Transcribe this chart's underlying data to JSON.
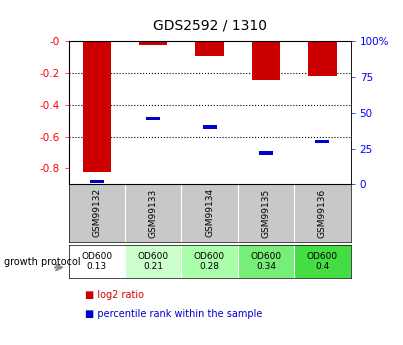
{
  "title": "GDS2592 / 1310",
  "samples": [
    "GSM99132",
    "GSM99133",
    "GSM99134",
    "GSM99135",
    "GSM99136"
  ],
  "log2_ratios": [
    -0.82,
    -0.02,
    -0.09,
    -0.24,
    -0.22
  ],
  "percentile_ranks": [
    2,
    46,
    40,
    22,
    30
  ],
  "od600_labels": [
    "OD600\n0.13",
    "OD600\n0.21",
    "OD600\n0.28",
    "OD600\n0.34",
    "OD600\n0.4"
  ],
  "od600_colors": [
    "#ffffff",
    "#ccffcc",
    "#aaffaa",
    "#77ee77",
    "#44dd44"
  ],
  "bar_color": "#cc0000",
  "pct_color": "#0000cc",
  "yticks_left": [
    0.0,
    -0.2,
    -0.4,
    -0.6,
    -0.8
  ],
  "ytick_labels_left": [
    "-0",
    "-0.2",
    "-0.4",
    "-0.6",
    "-0.8"
  ],
  "yticks_right_pct": [
    100,
    75,
    50,
    25,
    0
  ],
  "ytick_labels_right": [
    "100%",
    "75",
    "50",
    "25",
    "0"
  ],
  "sample_label_bg": "#c8c8c8",
  "legend_text1": "log2 ratio",
  "legend_text2": "percentile rank within the sample",
  "growth_protocol_text": "growth protocol"
}
